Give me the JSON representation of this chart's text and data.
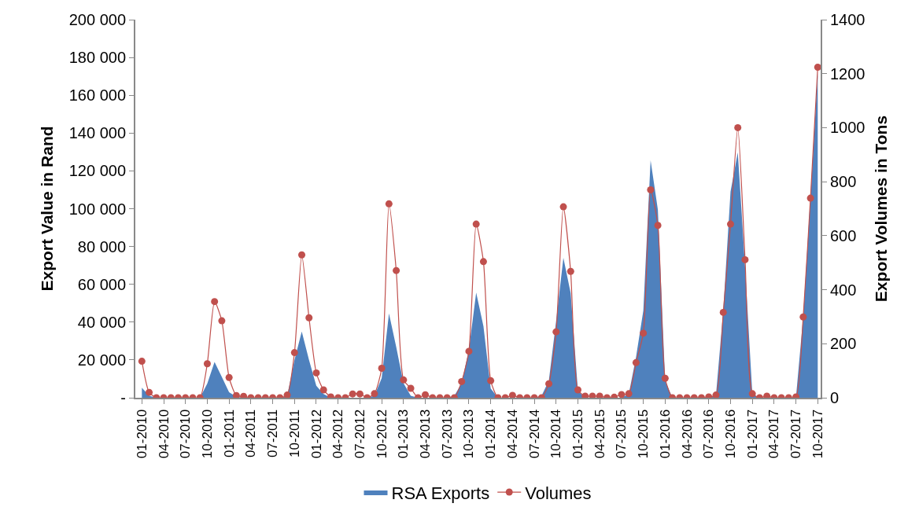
{
  "chart_data": {
    "type": "area",
    "categories": [
      "01-2010",
      null,
      null,
      "04-2010",
      null,
      null,
      "07-2010",
      null,
      null,
      "10-2010",
      null,
      null,
      "01-2011",
      null,
      null,
      "04-2011",
      null,
      null,
      "07-2011",
      null,
      null,
      "10-2011",
      null,
      null,
      "01-2012",
      null,
      null,
      "04-2012",
      null,
      null,
      "07-2012",
      null,
      null,
      "10-2012",
      null,
      null,
      "01-2013",
      null,
      null,
      "04-2013",
      null,
      null,
      "07-2013",
      null,
      null,
      "10-2013",
      null,
      null,
      "01-2014",
      null,
      null,
      "04-2014",
      null,
      null,
      "07-2014",
      null,
      null,
      "10-2014",
      null,
      null,
      "01-2015",
      null,
      null,
      "04-2015",
      null,
      null,
      "07-2015",
      null,
      null,
      "10-2015",
      null,
      null,
      "01-2016",
      null,
      null,
      "04-2016",
      null,
      null,
      "07-2016",
      null,
      null,
      "10-2016",
      null,
      null,
      "01-2017",
      null,
      null,
      "04-2017",
      null,
      null,
      "07-2017",
      null,
      null,
      "10-2017"
    ],
    "series": [
      {
        "name": "RSA Exports",
        "color": "#4f81bd",
        "values": [
          5300,
          1000,
          0,
          0,
          0,
          0,
          0,
          0,
          0,
          7500,
          18900,
          11000,
          2900,
          500,
          0,
          0,
          0,
          0,
          0,
          0,
          1000,
          20000,
          35000,
          20000,
          6300,
          2000,
          0,
          0,
          0,
          0,
          0,
          0,
          1000,
          10400,
          44600,
          26800,
          7700,
          1000,
          0,
          0,
          0,
          0,
          0,
          1000,
          7700,
          25500,
          55600,
          37800,
          4900,
          0,
          0,
          0,
          0,
          0,
          0,
          1000,
          9000,
          40500,
          74000,
          55400,
          3600,
          0,
          0,
          0,
          0,
          0,
          0,
          2000,
          21500,
          46000,
          125600,
          99500,
          9000,
          0,
          0,
          0,
          0,
          0,
          0,
          1500,
          46000,
          109000,
          129800,
          69300,
          2000,
          0,
          0,
          0,
          0,
          0,
          0,
          42800,
          106000,
          172000
        ]
      },
      {
        "name": "Volumes",
        "type": "line",
        "axis": "y2",
        "marker": "circle",
        "line_style": "solid",
        "color": "#c0504d",
        "values": [
          135,
          20,
          0,
          0,
          0,
          0,
          0,
          0,
          0,
          126,
          356,
          285,
          75,
          8,
          5,
          0,
          0,
          0,
          0,
          0,
          10,
          167,
          529,
          296,
          92,
          29,
          3,
          0,
          0,
          14,
          14,
          0,
          15,
          109,
          718,
          471,
          66,
          35,
          0,
          11,
          0,
          0,
          0,
          0,
          60,
          172,
          643,
          504,
          63,
          0,
          0,
          9,
          0,
          0,
          0,
          0,
          52,
          244,
          707,
          468,
          29,
          6,
          6,
          6,
          0,
          2,
          12,
          15,
          130,
          239,
          770,
          638,
          72,
          0,
          0,
          0,
          0,
          0,
          3,
          10,
          316,
          643,
          1000,
          511,
          15,
          0,
          6,
          0,
          0,
          0,
          3,
          299,
          739,
          1224
        ]
      }
    ],
    "ylabel": "Export Value in Rand",
    "y2label": "Export Volumes in Tons",
    "ylim": [
      0,
      200000
    ],
    "yticks": [
      {
        "value": 0,
        "label": "-"
      },
      {
        "value": 20000,
        "label": "20 000"
      },
      {
        "value": 40000,
        "label": "40 000"
      },
      {
        "value": 60000,
        "label": "60 000"
      },
      {
        "value": 80000,
        "label": "80 000"
      },
      {
        "value": 100000,
        "label": "100 000"
      },
      {
        "value": 120000,
        "label": "120 000"
      },
      {
        "value": 140000,
        "label": "140 000"
      },
      {
        "value": 160000,
        "label": "160 000"
      },
      {
        "value": 180000,
        "label": "180 000"
      },
      {
        "value": 200000,
        "label": "200 000"
      }
    ],
    "y2lim": [
      0,
      1400
    ],
    "y2ticks": [
      0,
      200,
      400,
      600,
      800,
      1000,
      1200,
      1400
    ],
    "legend": "bottom"
  }
}
